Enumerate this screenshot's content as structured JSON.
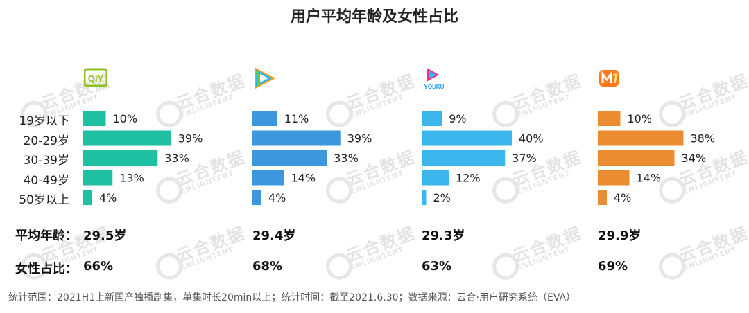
{
  "title": "用户平均年龄及女性占比",
  "age_groups": [
    "19岁以下",
    "20-29岁",
    "30-39岁",
    "40-49岁",
    "50岁以上"
  ],
  "labels": {
    "avg_age": "平均年龄：",
    "female_ratio": "女性占比："
  },
  "watermark": {
    "cn": "云合数据",
    "en": "ENLIGHTENT"
  },
  "platforms": [
    {
      "logo_text": "QIY",
      "icon": "iqiyi-logo-icon",
      "color": "#1fbfa1",
      "avg_age": "29.5岁",
      "female_ratio": "66%"
    },
    {
      "logo_text": "",
      "icon": "tencent-video-logo-icon",
      "color": "#3d97dc",
      "avg_age": "29.4岁",
      "female_ratio": "68%"
    },
    {
      "logo_text": "YOUKU",
      "icon": "youku-logo-icon",
      "color": "#3bb7ee",
      "avg_age": "29.3岁",
      "female_ratio": "63%"
    },
    {
      "logo_text": "",
      "icon": "mango-tv-logo-icon",
      "color": "#ea8c2f",
      "avg_age": "29.9岁",
      "female_ratio": "69%"
    }
  ],
  "chart_data": {
    "type": "bar",
    "orientation": "horizontal",
    "categories": [
      "19岁以下",
      "20-29岁",
      "30-39岁",
      "40-49岁",
      "50岁以上"
    ],
    "unit": "%",
    "series": [
      {
        "values": [
          10,
          39,
          33,
          13,
          4
        ],
        "color": "#1fbfa1",
        "avg_age": "29.5岁",
        "female_ratio": "66%"
      },
      {
        "values": [
          11,
          39,
          33,
          14,
          4
        ],
        "color": "#3d97dc",
        "avg_age": "29.4岁",
        "female_ratio": "68%"
      },
      {
        "values": [
          9,
          40,
          37,
          12,
          2
        ],
        "color": "#3bb7ee",
        "avg_age": "29.3岁",
        "female_ratio": "63%"
      },
      {
        "values": [
          10,
          38,
          34,
          14,
          4
        ],
        "color": "#ea8c2f",
        "avg_age": "29.9岁",
        "female_ratio": "69%"
      }
    ],
    "xlim": [
      0,
      40
    ],
    "grid": false,
    "legend": "none"
  },
  "source": "统计范围：2021H1上新国产独播剧集，单集时长20min以上；统计时间：截至2021.6.30；数据来源：云合·用户研究系统（EVA）"
}
